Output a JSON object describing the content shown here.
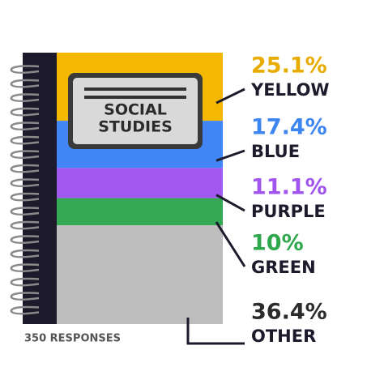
{
  "chart_data": {
    "type": "stacked",
    "title_lines": [
      "SOCIAL",
      "STUDIES"
    ],
    "note": "350 RESPONSES",
    "categories": [
      "YELLOW",
      "BLUE",
      "PURPLE",
      "GREEN",
      "OTHER"
    ],
    "values": [
      25.1,
      17.4,
      11.1,
      10,
      36.4
    ],
    "value_labels": [
      "25.1%",
      "17.4%",
      "11.1%",
      "10%",
      "36.4%"
    ],
    "colors": [
      "#f5b800",
      "#4285f4",
      "#a259f0",
      "#34a853",
      "#bdbdbd"
    ],
    "label_colors": [
      "#e8ac00",
      "#3d86f2",
      "#a155ef",
      "#2fa84d",
      "#2b2b2b"
    ]
  }
}
